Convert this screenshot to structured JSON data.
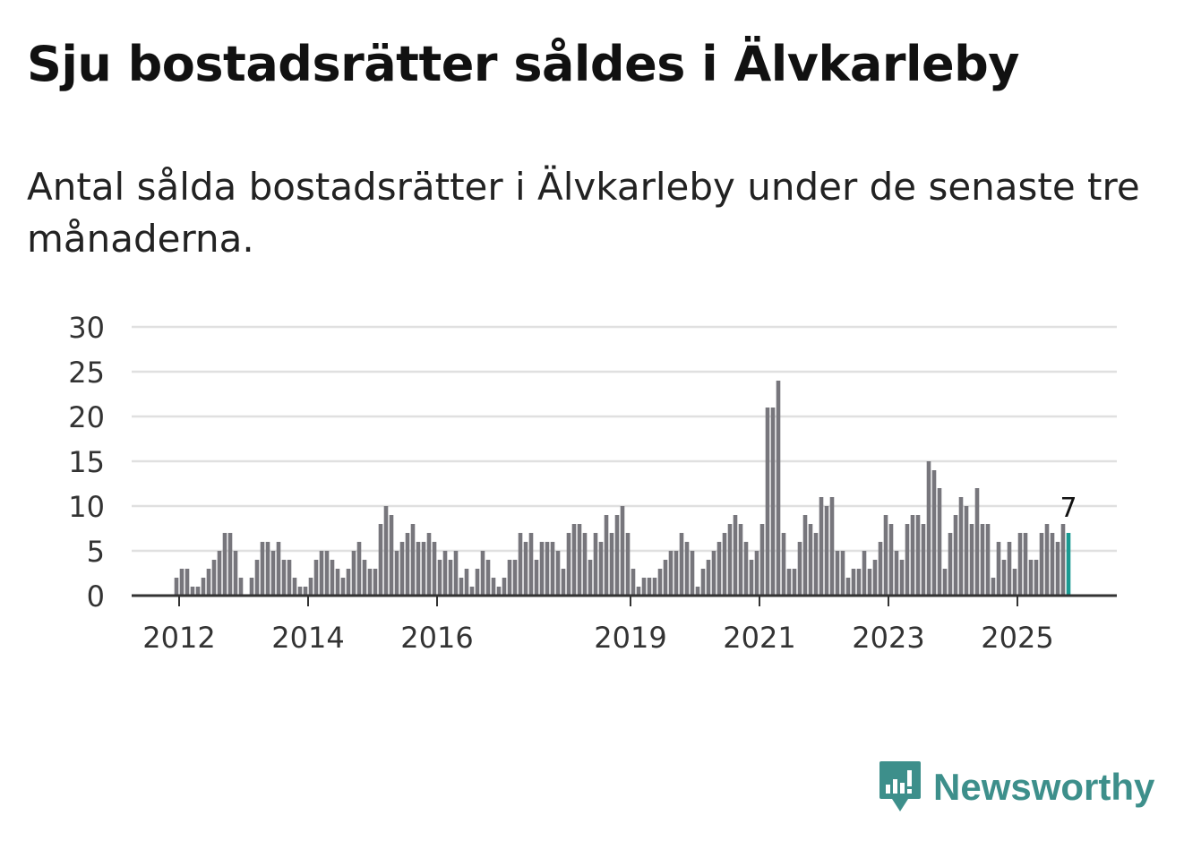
{
  "header": {
    "title": "Sju bostadsrätter såldes i Älvkarleby",
    "subtitle": "Antal sålda bostadsrätter i Älvkarleby under de senaste tre månaderna."
  },
  "brand": {
    "name": "Newsworthy",
    "icon": "newsworthy-logo-icon",
    "color": "#3d8f8b"
  },
  "chart_data": {
    "type": "bar",
    "title": "Sju bostadsrätter såldes i Älvkarleby",
    "xlabel": "",
    "ylabel": "",
    "ylim": [
      0,
      30
    ],
    "yticks": [
      "0",
      "5",
      "10",
      "15",
      "20",
      "25",
      "30"
    ],
    "xticks": [
      {
        "label": "2012",
        "index": 0
      },
      {
        "label": "2014",
        "index": 24
      },
      {
        "label": "2016",
        "index": 48
      },
      {
        "label": "2019",
        "index": 84
      },
      {
        "label": "2021",
        "index": 108
      },
      {
        "label": "2023",
        "index": 132
      },
      {
        "label": "2025",
        "index": 156
      }
    ],
    "values": [
      2,
      3,
      3,
      1,
      1,
      2,
      3,
      4,
      5,
      7,
      7,
      5,
      2,
      0,
      2,
      4,
      6,
      6,
      5,
      6,
      4,
      4,
      2,
      1,
      1,
      2,
      4,
      5,
      5,
      4,
      3,
      2,
      3,
      5,
      6,
      4,
      3,
      3,
      8,
      10,
      9,
      5,
      6,
      7,
      8,
      6,
      6,
      7,
      6,
      4,
      5,
      4,
      5,
      2,
      3,
      1,
      3,
      5,
      4,
      2,
      1,
      2,
      4,
      4,
      7,
      6,
      7,
      4,
      6,
      6,
      6,
      5,
      3,
      7,
      8,
      8,
      7,
      4,
      7,
      6,
      9,
      7,
      9,
      10,
      7,
      3,
      1,
      2,
      2,
      2,
      3,
      4,
      5,
      5,
      7,
      6,
      5,
      1,
      3,
      4,
      5,
      6,
      7,
      8,
      9,
      8,
      6,
      4,
      5,
      8,
      21,
      21,
      24,
      7,
      3,
      3,
      6,
      9,
      8,
      7,
      11,
      10,
      11,
      5,
      5,
      2,
      3,
      3,
      5,
      3,
      4,
      6,
      9,
      8,
      5,
      4,
      8,
      9,
      9,
      8,
      15,
      14,
      12,
      3,
      7,
      9,
      11,
      10,
      8,
      12,
      8,
      8,
      2,
      6,
      4,
      6,
      3,
      7,
      7,
      4,
      4,
      7,
      8,
      7,
      6,
      8,
      7
    ],
    "highlight": {
      "index": 166,
      "label": "7",
      "color": "#1a9a92"
    },
    "bar_color": "#77767c",
    "grid_color": "#e0e0e0",
    "grid": true
  }
}
